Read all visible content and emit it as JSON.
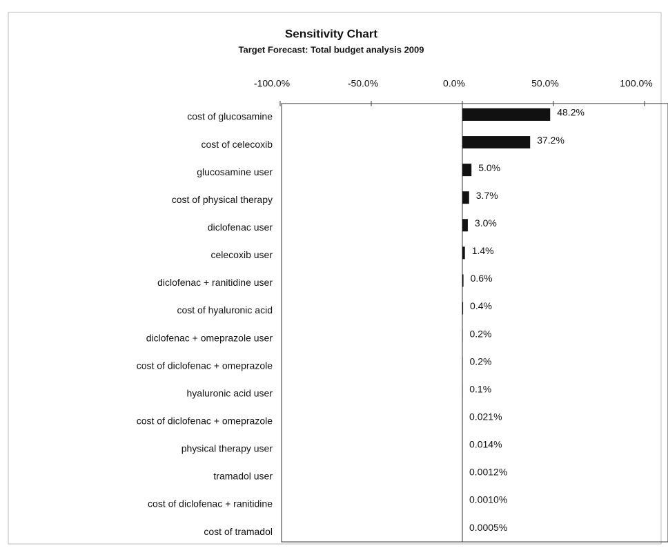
{
  "chart_data": {
    "type": "bar",
    "orientation": "horizontal",
    "title": "Sensitivity Chart",
    "subtitle": "Target Forecast: Total budget analysis 2009",
    "categories": [
      "cost of glucosamine",
      "cost of celecoxib",
      "glucosamine user",
      "cost of physical therapy",
      "diclofenac user",
      "celecoxib user",
      "diclofenac + ranitidine user",
      "cost of hyaluronic acid",
      "diclofenac + omeprazole user",
      "cost of diclofenac + omeprazole",
      "hyaluronic acid user",
      "cost of diclofenac + omeprazole",
      "physical therapy user",
      "tramadol user",
      "cost of diclofenac + ranitidine",
      "cost of tramadol"
    ],
    "values": [
      48.2,
      37.2,
      5.0,
      3.7,
      3.0,
      1.4,
      0.6,
      0.4,
      0.2,
      0.2,
      0.1,
      0.021,
      0.014,
      0.0012,
      0.001,
      0.0005
    ],
    "value_labels": [
      "48.2%",
      "37.2%",
      "5.0%",
      "3.7%",
      "3.0%",
      "1.4%",
      "0.6%",
      "0.4%",
      "0.2%",
      "0.2%",
      "0.1%",
      "0.021%",
      "0.014%",
      "0.0012%",
      "0.0010%",
      "0.0005%"
    ],
    "color": "#111111",
    "xlim": [
      -100,
      100
    ],
    "xticks": [
      {
        "value": -100,
        "label": "-100.0%"
      },
      {
        "value": -50,
        "label": "-50.0%"
      },
      {
        "value": 0,
        "label": "0.0%"
      },
      {
        "value": 50,
        "label": "50.0%"
      },
      {
        "value": 100,
        "label": "100.0%"
      }
    ]
  }
}
